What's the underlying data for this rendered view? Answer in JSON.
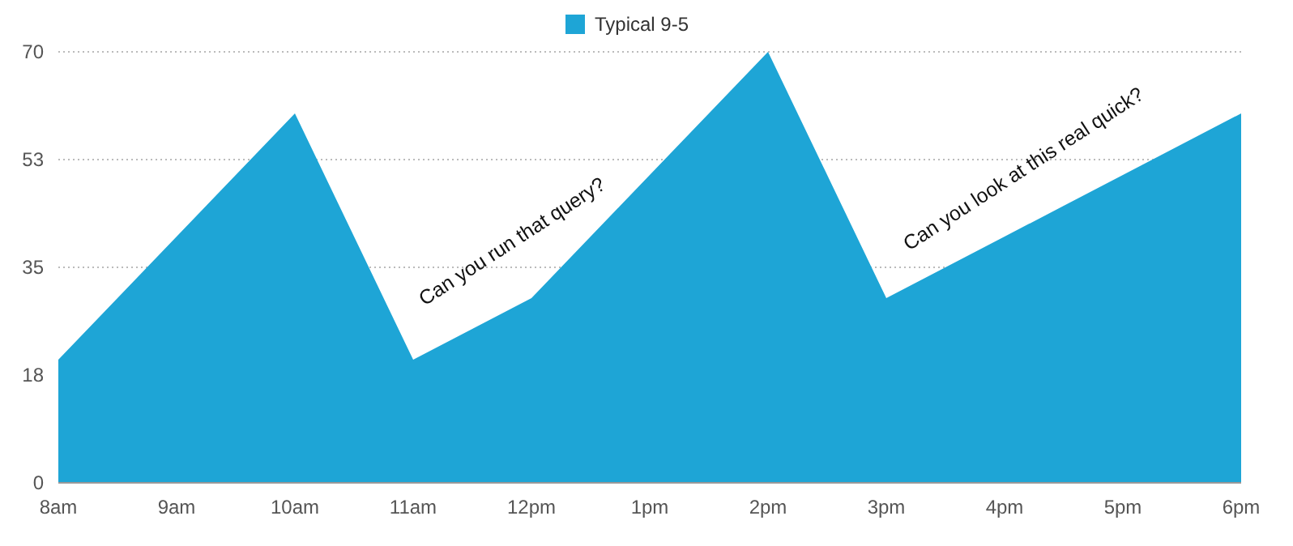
{
  "chart_data": {
    "type": "area",
    "categories": [
      "8am",
      "9am",
      "10am",
      "11am",
      "12pm",
      "1pm",
      "2pm",
      "3pm",
      "4pm",
      "5pm",
      "6pm"
    ],
    "series": [
      {
        "name": "Typical 9-5",
        "color": "#1ea5d6",
        "values": [
          20,
          40,
          60,
          20,
          30,
          50,
          70,
          30,
          40,
          50,
          60
        ]
      }
    ],
    "ylim": [
      0,
      70
    ],
    "yticks": [
      0,
      {
        "value": 17.5,
        "label": "18"
      },
      35,
      {
        "value": 52.5,
        "label": "53"
      },
      70
    ],
    "grid": "y",
    "legend": "top",
    "annotations": [
      "Can you run that query?",
      "Can you look at this real quick?"
    ]
  }
}
